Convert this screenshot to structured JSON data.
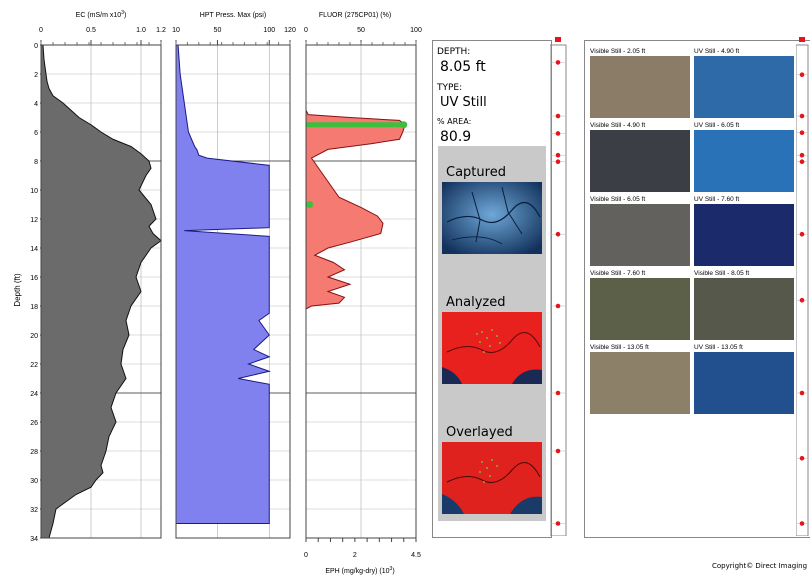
{
  "depth_axis": {
    "label": "Depth (ft)",
    "ticks": [
      0,
      2,
      4,
      6,
      8,
      10,
      12,
      14,
      16,
      18,
      20,
      22,
      24,
      26,
      28,
      30,
      32,
      34
    ],
    "range": [
      0,
      34
    ]
  },
  "chart_data": [
    {
      "type": "area",
      "title": "EC (mS/m x10³)",
      "title_parts": {
        "main": "EC (mS/m x10",
        "sup": "3",
        "end": ")"
      },
      "xlim": [
        0,
        1.2
      ],
      "xticks": [
        "0",
        "0.5",
        "1.0",
        "1.2"
      ],
      "xtick_values": [
        0,
        0.5,
        1.0,
        1.2
      ],
      "fill": "#6b6b6b",
      "series": [
        {
          "x": [
            0.02,
            0.03,
            0.05,
            0.06,
            0.08,
            0.12,
            0.22,
            0.3,
            0.38,
            0.5,
            0.6,
            0.72,
            0.9,
            1.0,
            1.08,
            1.1,
            1.05,
            0.98,
            1.1,
            1.15,
            1.08,
            1.12,
            1.2,
            1.1,
            1.0,
            0.95,
            1.0,
            0.9,
            0.85,
            0.88,
            0.82,
            0.8,
            0.85,
            0.75,
            0.7,
            0.75,
            0.68,
            0.65,
            0.6,
            0.62,
            0.55,
            0.5,
            0.35,
            0.25,
            0.15,
            0.12,
            0.1,
            0.08
          ],
          "y": [
            0,
            1,
            2,
            2.5,
            3,
            3.5,
            4,
            4.5,
            5,
            5.5,
            6,
            6.5,
            7,
            7.5,
            8,
            8.5,
            9,
            10,
            11,
            12,
            12.5,
            13,
            13.5,
            14,
            15,
            16,
            17,
            18,
            19,
            20,
            21,
            22,
            23,
            24,
            25,
            26,
            27,
            28,
            29,
            29.5,
            30,
            30.5,
            31,
            31.5,
            32,
            33,
            33.5,
            34
          ]
        }
      ]
    },
    {
      "type": "area",
      "title": "HPT Press. Max (psi)",
      "xlim": [
        10,
        120
      ],
      "xticks": [
        "10",
        "50",
        "100",
        "120"
      ],
      "xtick_values": [
        10,
        50,
        100,
        120
      ],
      "fill": "#8080ee",
      "series": [
        {
          "x": [
            12,
            14,
            16,
            18,
            20,
            22,
            25,
            28,
            30,
            32,
            40,
            100,
            100,
            100,
            100,
            100,
            18,
            100,
            100,
            100,
            100,
            90,
            100,
            85,
            100,
            80,
            100,
            70,
            100,
            100,
            100,
            100,
            100,
            100,
            100,
            100
          ],
          "y": [
            0,
            2,
            3,
            4,
            5,
            6,
            6.5,
            7,
            7.2,
            7.6,
            7.8,
            8.3,
            10,
            12,
            12.4,
            12.6,
            12.8,
            13.2,
            16,
            18,
            18.5,
            19,
            20,
            21,
            21.5,
            22,
            22.5,
            23,
            23.4,
            24,
            26,
            28,
            30,
            32,
            32.5,
            33
          ]
        }
      ]
    },
    {
      "type": "area",
      "title": "FLUOR (275CP01) (%)",
      "xlim": [
        0,
        100
      ],
      "xticks": [
        "0",
        "50",
        "100"
      ],
      "xtick_values": [
        0,
        50,
        100
      ],
      "fill": "#f47a72",
      "secondary_title": "EPH (mg/kg-dry) (10³)",
      "secondary_title_parts": {
        "main": "EPH (mg/kg-dry) (10",
        "sup": "3",
        "end": ")"
      },
      "secondary_xlim": [
        0,
        4.5
      ],
      "secondary_xticks": [
        "0",
        "2",
        "4.5"
      ],
      "secondary_xtick_values": [
        0,
        2,
        4.5
      ],
      "series": [
        {
          "x": [
            0,
            0,
            2,
            40,
            85,
            90,
            88,
            85,
            60,
            20,
            5,
            30,
            50,
            65,
            70,
            68,
            40,
            20,
            8,
            25,
            35,
            20,
            40,
            20,
            35,
            30,
            5,
            0,
            0
          ],
          "y": [
            0,
            4.5,
            4.8,
            5.0,
            5.2,
            5.5,
            6.0,
            6.5,
            6.8,
            7.2,
            7.8,
            10.5,
            11.2,
            11.8,
            12.3,
            13.0,
            13.6,
            14.0,
            14.5,
            15.0,
            15.5,
            16.0,
            16.5,
            17.0,
            17.4,
            17.8,
            18.0,
            18.2,
            34
          ]
        }
      ],
      "eph_points": [
        {
          "depth": 5.5,
          "value": 4.0
        },
        {
          "depth": 11.0,
          "value": 0.15
        }
      ]
    }
  ],
  "info": {
    "depth_label": "DEPTH:",
    "depth_value": "8.05 ft",
    "type_label": "TYPE:",
    "type_value": "UV Still",
    "area_label": "% AREA:",
    "area_value": "80.9",
    "captured_label": "Captured",
    "analyzed_label": "Analyzed",
    "overlayed_label": "Overlayed"
  },
  "gallery": [
    {
      "label": "Visible Still - 2.05 ft",
      "color": "#8a7c66"
    },
    {
      "label": "UV Still - 4.90 ft",
      "color": "#2f6aa8"
    },
    {
      "label": "Visible Still - 4.90 ft",
      "color": "#3b3e44"
    },
    {
      "label": "UV Still - 6.05 ft",
      "color": "#2a72b8"
    },
    {
      "label": "Visible Still - 6.05 ft",
      "color": "#62615e"
    },
    {
      "label": "UV Still - 7.60 ft",
      "color": "#1a2a6a"
    },
    {
      "label": "Visible Still - 7.60 ft",
      "color": "#5c6048"
    },
    {
      "label": "Visible Still - 8.05 ft",
      "color": "#55584a"
    },
    {
      "label": "Visible Still - 13.05 ft",
      "color": "#8d8068"
    },
    {
      "label": "UV Still - 13.05 ft",
      "color": "#22508e"
    }
  ],
  "marker_depths_left": [
    1.2,
    4.9,
    6.1,
    7.6,
    8.05,
    13.05,
    18,
    24,
    28,
    33
  ],
  "marker_depths_right": [
    2.05,
    4.9,
    6.05,
    7.6,
    8.05,
    13.05,
    17.6,
    24,
    28.5,
    33
  ],
  "marker_color": "#e8141c",
  "copyright": "Copyright© Direct Imaging"
}
